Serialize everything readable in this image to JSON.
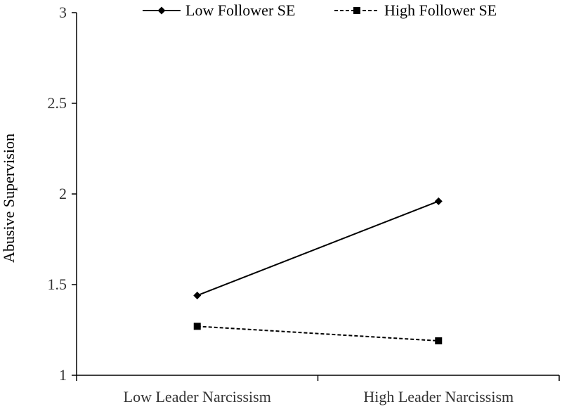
{
  "chart_data": {
    "type": "line",
    "categories": [
      "Low Leader Narcissism",
      "High Leader Narcissism"
    ],
    "series": [
      {
        "name": "Low Follower SE",
        "values": [
          1.44,
          1.96
        ],
        "line_style": "solid",
        "marker": "diamond",
        "color": "#000000"
      },
      {
        "name": "High Follower SE",
        "values": [
          1.27,
          1.19
        ],
        "line_style": "dashed",
        "marker": "square",
        "color": "#000000"
      }
    ],
    "xlabel": "",
    "ylabel": "Abusive Supervision",
    "ylim": [
      1,
      3
    ],
    "yticks": [
      "1",
      "1.5",
      "2",
      "2.5",
      "3"
    ],
    "grid": false,
    "legend_position": "top-center"
  }
}
